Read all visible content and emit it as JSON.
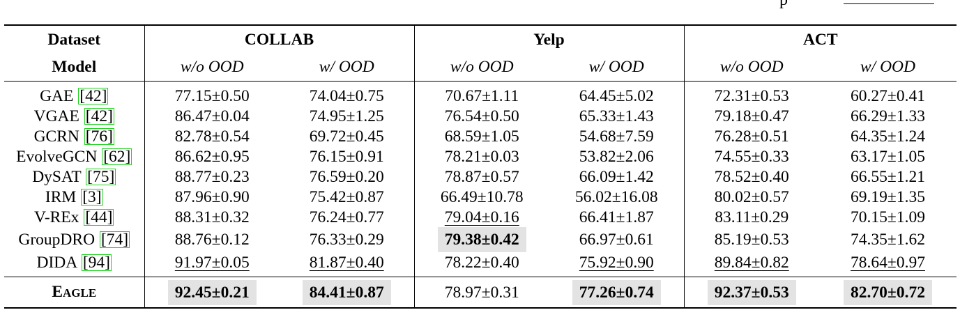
{
  "top_fragment": {
    "char": "p"
  },
  "table": {
    "header": {
      "dataset_label": "Dataset",
      "model_label": "Model",
      "datasets": [
        "COLLAB",
        "Yelp",
        "ACT"
      ],
      "sub_wo": "w/o OOD",
      "sub_w": "w/ OOD"
    },
    "rows": [
      {
        "model": "GAE ",
        "ref": "42",
        "cells": [
          {
            "v": "77.15±0.50"
          },
          {
            "v": "74.04±0.75"
          },
          {
            "v": "70.67±1.11"
          },
          {
            "v": "64.45±5.02"
          },
          {
            "v": "72.31±0.53"
          },
          {
            "v": "60.27±0.41"
          }
        ]
      },
      {
        "model": "VGAE ",
        "ref": "42",
        "cells": [
          {
            "v": "86.47±0.04"
          },
          {
            "v": "74.95±1.25"
          },
          {
            "v": "76.54±0.50"
          },
          {
            "v": "65.33±1.43"
          },
          {
            "v": "79.18±0.47"
          },
          {
            "v": "66.29±1.33"
          }
        ]
      },
      {
        "model": "GCRN ",
        "ref": "76",
        "cells": [
          {
            "v": "82.78±0.54"
          },
          {
            "v": "69.72±0.45"
          },
          {
            "v": "68.59±1.05"
          },
          {
            "v": "54.68±7.59"
          },
          {
            "v": "76.28±0.51"
          },
          {
            "v": "64.35±1.24"
          }
        ]
      },
      {
        "model": "EvolveGCN ",
        "ref": "62",
        "cells": [
          {
            "v": "86.62±0.95"
          },
          {
            "v": "76.15±0.91"
          },
          {
            "v": "78.21±0.03"
          },
          {
            "v": "53.82±2.06"
          },
          {
            "v": "74.55±0.33"
          },
          {
            "v": "63.17±1.05"
          }
        ]
      },
      {
        "model": "DySAT ",
        "ref": "75",
        "cells": [
          {
            "v": "88.77±0.23"
          },
          {
            "v": "76.59±0.20"
          },
          {
            "v": "78.87±0.57"
          },
          {
            "v": "66.09±1.42"
          },
          {
            "v": "78.52±0.40"
          },
          {
            "v": "66.55±1.21"
          }
        ]
      },
      {
        "model": "IRM ",
        "ref": "3",
        "cells": [
          {
            "v": "87.96±0.90"
          },
          {
            "v": "75.42±0.87"
          },
          {
            "v": "66.49±10.78"
          },
          {
            "v": "56.02±16.08"
          },
          {
            "v": "80.02±0.57"
          },
          {
            "v": "69.19±1.35"
          }
        ]
      },
      {
        "model": "V-REx ",
        "ref": "44",
        "cells": [
          {
            "v": "88.31±0.32"
          },
          {
            "v": "76.24±0.77"
          },
          {
            "v": "79.04±0.16",
            "s": "second"
          },
          {
            "v": "66.41±1.87"
          },
          {
            "v": "83.11±0.29"
          },
          {
            "v": "70.15±1.09"
          }
        ]
      },
      {
        "model": "GroupDRO ",
        "ref": "74",
        "cells": [
          {
            "v": "88.76±0.12"
          },
          {
            "v": "76.33±0.29"
          },
          {
            "v": "79.38±0.42",
            "s": "best"
          },
          {
            "v": "66.97±0.61"
          },
          {
            "v": "85.19±0.53"
          },
          {
            "v": "74.35±1.62"
          }
        ]
      },
      {
        "model": "DIDA ",
        "ref": "94",
        "cells": [
          {
            "v": "91.97±0.05",
            "s": "second"
          },
          {
            "v": "81.87±0.40",
            "s": "second"
          },
          {
            "v": "78.22±0.40"
          },
          {
            "v": "75.92±0.90",
            "s": "second"
          },
          {
            "v": "89.84±0.82",
            "s": "second"
          },
          {
            "v": "78.64±0.97",
            "s": "second"
          }
        ]
      }
    ],
    "ours": {
      "model_parts": [
        "E",
        "AGLE"
      ],
      "cells": [
        {
          "v": "92.45±0.21",
          "s": "best"
        },
        {
          "v": "84.41±0.87",
          "s": "best"
        },
        {
          "v": "78.97±0.31"
        },
        {
          "v": "77.26±0.74",
          "s": "best"
        },
        {
          "v": "92.37±0.53",
          "s": "best"
        },
        {
          "v": "82.70±0.72",
          "s": "best"
        }
      ]
    }
  },
  "colors": {
    "best_highlight": "#e3e3e3",
    "citation_box": "#1fd21f",
    "rule": "#000000"
  }
}
